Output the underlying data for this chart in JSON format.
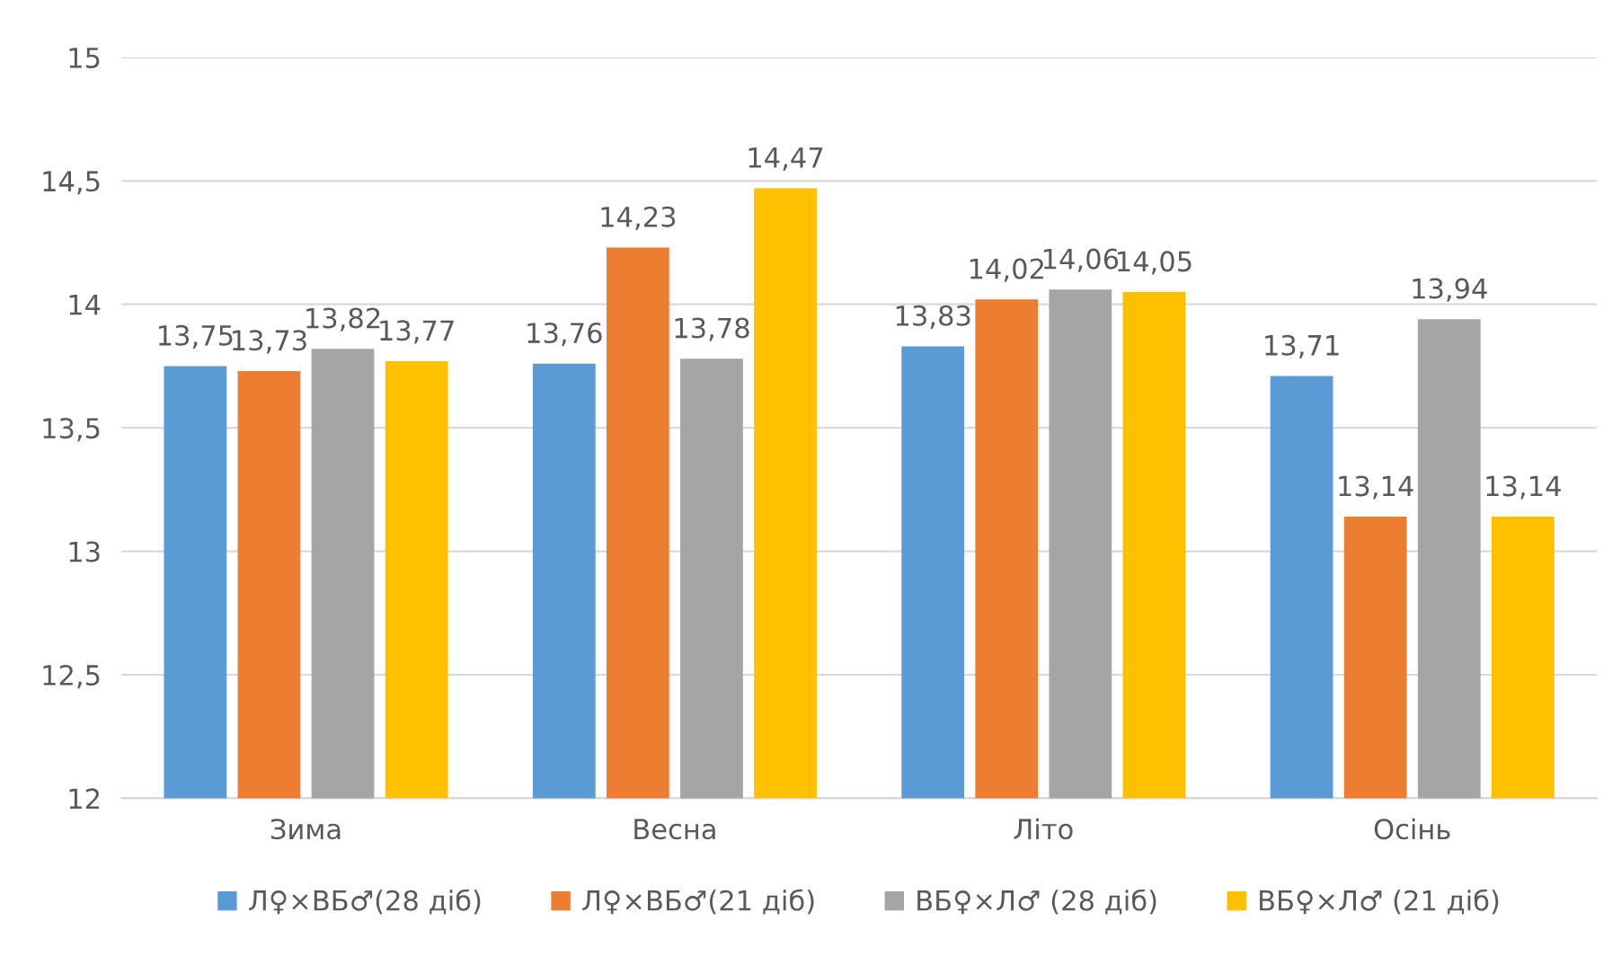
{
  "chart_data": {
    "type": "bar",
    "categories": [
      "Зима",
      "Весна",
      "Літо",
      "Осінь"
    ],
    "series": [
      {
        "name": "Л♀×ВБ♂(28 діб)",
        "color": "#5b9bd5",
        "values": [
          13.75,
          13.76,
          13.83,
          13.71
        ],
        "value_labels": [
          "13,75",
          "13,76",
          "13,83",
          "13,71"
        ]
      },
      {
        "name": "Л♀×ВБ♂(21 діб)",
        "color": "#ed7d31",
        "values": [
          13.73,
          14.23,
          14.02,
          13.14
        ],
        "value_labels": [
          "13,73",
          "14,23",
          "14,02",
          "13,14"
        ]
      },
      {
        "name": "ВБ♀×Л♂ (28 діб)",
        "color": "#a5a5a5",
        "values": [
          13.82,
          13.78,
          14.06,
          13.94
        ],
        "value_labels": [
          "13,82",
          "13,78",
          "14,06",
          "13,94"
        ]
      },
      {
        "name": "ВБ♀×Л♂ (21 діб)",
        "color": "#ffc000",
        "values": [
          13.77,
          14.47,
          14.05,
          13.14
        ],
        "value_labels": [
          "13,77",
          "14,47",
          "14,05",
          "13,14"
        ]
      }
    ],
    "ylim": [
      12,
      15
    ],
    "yticks": [
      12,
      {
        "value": 12.5,
        "label": "12,5"
      },
      13,
      {
        "value": 13.5,
        "label": "13,5"
      },
      14,
      {
        "value": 14.5,
        "label": "14,5"
      },
      15
    ],
    "grid": "y",
    "legend": "bottom"
  }
}
